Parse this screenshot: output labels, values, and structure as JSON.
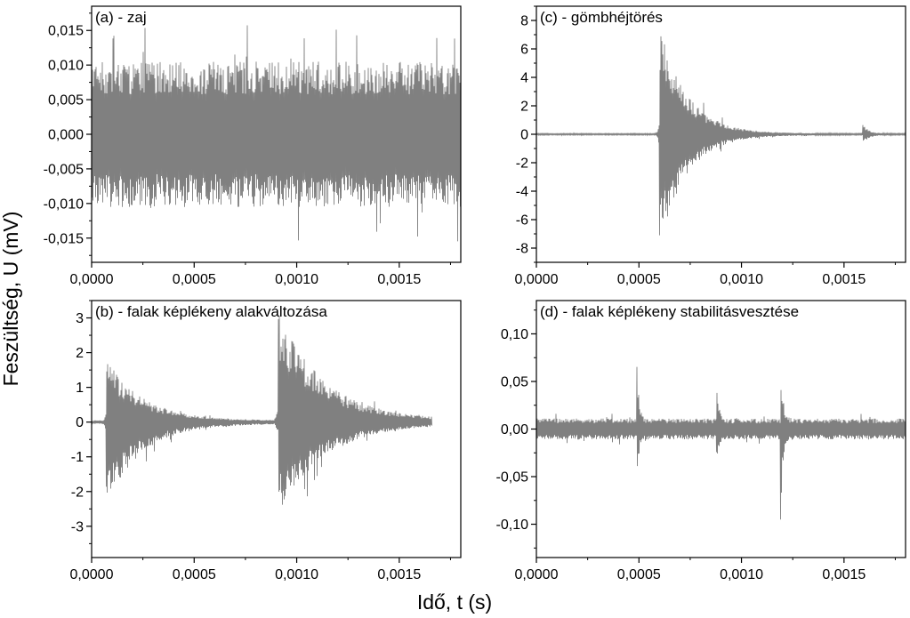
{
  "figure": {
    "ylabel": "Feszültség, U (mV)",
    "xlabel": "Idő, t (s)",
    "signal_color": "#808080"
  },
  "chart_data": [
    {
      "type": "line",
      "label": "(a) - zaj",
      "xlim": [
        0,
        0.0018
      ],
      "ylim": [
        -0.0185,
        0.0185
      ],
      "x_ticks": [
        0,
        0.0005,
        0.001,
        0.0015
      ],
      "x_tick_labels": [
        "0,0000",
        "0,0005",
        "0,0010",
        "0,0015"
      ],
      "y_ticks": [
        -0.015,
        -0.01,
        -0.005,
        0,
        0.005,
        0.01,
        0.015
      ],
      "y_tick_labels": [
        "-0,015",
        "-0,010",
        "-0,005",
        "0,000",
        "0,005",
        "0,010",
        "0,015"
      ],
      "signal_end": 0.0018,
      "baseline_amplitude": 0.0105,
      "max_amplitude": 0.0165,
      "events": []
    },
    {
      "type": "line",
      "label": "(b) - falak képlékeny alakváltozása",
      "xlim": [
        0,
        0.0018
      ],
      "ylim": [
        -3.9,
        3.5
      ],
      "x_ticks": [
        0,
        0.0005,
        0.001,
        0.0015
      ],
      "x_tick_labels": [
        "0,0000",
        "0,0005",
        "0,0010",
        "0,0015"
      ],
      "y_ticks": [
        -3,
        -2,
        -1,
        0,
        1,
        2,
        3
      ],
      "y_tick_labels": [
        "-3",
        "-2",
        "-1",
        "0",
        "1",
        "2",
        "3"
      ],
      "signal_end": 0.00166,
      "baseline_amplitude": 0.05,
      "max_amplitude": 3.2,
      "events": [
        {
          "t": 7e-05,
          "peak_pos": 1.9,
          "peak_neg": -2.4,
          "decay": 0.00017
        },
        {
          "t": 0.00091,
          "peak_pos": 3.2,
          "peak_neg": -2.7,
          "decay": 0.00022
        }
      ]
    },
    {
      "type": "line",
      "label": "(c) - gömbhéjtörés",
      "xlim": [
        0,
        0.0018
      ],
      "ylim": [
        -9,
        9
      ],
      "x_ticks": [
        0,
        0.0005,
        0.001,
        0.0015
      ],
      "x_tick_labels": [
        "0,0000",
        "0,0005",
        "0,0010",
        "0,0015"
      ],
      "y_ticks": [
        -8,
        -6,
        -4,
        -2,
        0,
        2,
        4,
        6,
        8
      ],
      "y_tick_labels": [
        "-8",
        "-6",
        "-4",
        "-2",
        "0",
        "2",
        "4",
        "6",
        "8"
      ],
      "signal_end": 0.0018,
      "baseline_amplitude": 0.05,
      "max_amplitude": 8,
      "events": [
        {
          "t": 0.0006,
          "peak_pos": 7.9,
          "peak_neg": -8.0,
          "decay": 0.00013
        },
        {
          "t": 0.00159,
          "peak_pos": 0.8,
          "peak_neg": -0.7,
          "decay": 3e-05
        }
      ]
    },
    {
      "type": "line",
      "label": "(d) - falak képlékeny stabilitásvesztése",
      "xlim": [
        0,
        0.0018
      ],
      "ylim": [
        -0.135,
        0.135
      ],
      "x_ticks": [
        0,
        0.0005,
        0.001,
        0.0015
      ],
      "x_tick_labels": [
        "0,0000",
        "0,0005",
        "0,0010",
        "0,0015"
      ],
      "y_ticks": [
        -0.1,
        -0.05,
        0,
        0.05,
        0.1
      ],
      "y_tick_labels": [
        "-0,10",
        "-0,05",
        "0,00",
        "0,05",
        "0,10"
      ],
      "signal_end": 0.0018,
      "baseline_amplitude": 0.011,
      "max_amplitude": 0.095,
      "events": [
        {
          "t": 0.000488,
          "peak_pos": 0.095,
          "peak_neg": -0.065,
          "decay": 1e-05
        },
        {
          "t": 0.000877,
          "peak_pos": 0.068,
          "peak_neg": -0.045,
          "decay": 1e-05
        },
        {
          "t": 0.00119,
          "peak_pos": 0.091,
          "peak_neg": -0.108,
          "decay": 1e-05
        }
      ]
    }
  ]
}
